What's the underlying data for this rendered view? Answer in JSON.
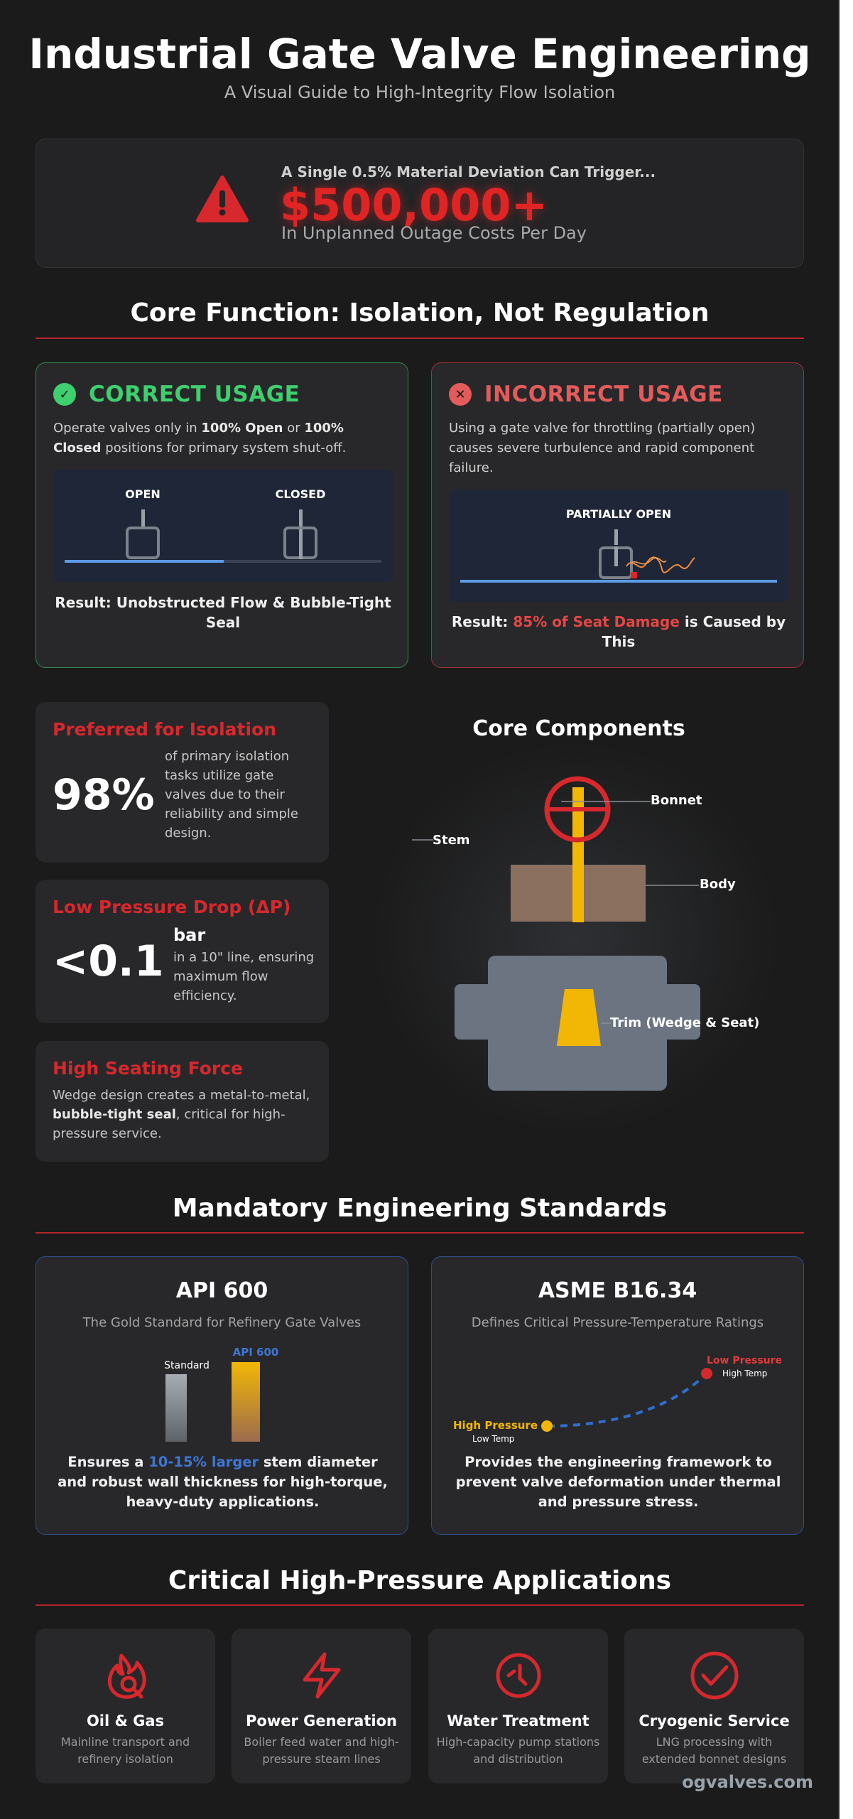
{
  "header": {
    "title": "Industrial Gate Valve Engineering",
    "subtitle": "A Visual Guide to High-Integrity Flow Isolation"
  },
  "alert": {
    "kicker": "A Single 0.5% Material Deviation Can Trigger...",
    "value": "$500,000+",
    "caption": "In Unplanned Outage Costs Per Day",
    "icon": "warning-triangle-icon",
    "color": "#e02424"
  },
  "core_function": {
    "title": "Core Function: Isolation, Not Regulation",
    "correct": {
      "title": "CORRECT USAGE",
      "icon": "check-circle-icon",
      "color": "#3ecf6e",
      "text_pre": "Operate valves only in ",
      "text_b1": "100% Open",
      "text_mid": " or ",
      "text_b2": "100% Closed",
      "text_post": " positions for primary system shut-off.",
      "diagram_open": "OPEN",
      "diagram_closed": "CLOSED",
      "result": "Result: Unobstructed Flow & Bubble-Tight Seal"
    },
    "incorrect": {
      "title": "INCORRECT USAGE",
      "icon": "x-circle-icon",
      "color": "#e35b5b",
      "text": "Using a gate valve for throttling (partially open) causes severe turbulence and rapid component failure.",
      "diagram_label": "PARTIALLY OPEN",
      "result_pre": "Result: ",
      "result_highlight": "85% of Seat Damage",
      "result_post": " is Caused by This"
    }
  },
  "stats": [
    {
      "title": "Preferred for Isolation",
      "value": "98%",
      "desc": "of primary isolation tasks utilize gate valves due to their reliability and simple design."
    },
    {
      "title": "Low Pressure Drop (ΔP)",
      "value": "<0.1",
      "unit": "bar",
      "desc": "in a 10\" line, ensuring maximum flow efficiency."
    },
    {
      "title": "High Seating Force",
      "desc_pre": "Wedge design creates a metal-to-metal, ",
      "desc_bold": "bubble-tight seal",
      "desc_post": ", critical for high-pressure service."
    }
  ],
  "components": {
    "title": "Core Components",
    "labels": {
      "bonnet": "Bonnet",
      "stem": "Stem",
      "body": "Body",
      "trim": "Trim (Wedge & Seat)"
    }
  },
  "standards": {
    "title": "Mandatory Engineering Standards",
    "api": {
      "title": "API 600",
      "subtitle": "The Gold Standard for Refinery Gate Valves",
      "bar_standard_label": "Standard",
      "bar_api_label": "API 600",
      "body_pre": "Ensures a ",
      "body_highlight": "10-15% larger",
      "body_post": " stem diameter and robust wall thickness for high-torque, heavy-duty applications."
    },
    "asme": {
      "title": "ASME B16.34",
      "subtitle": "Defines Critical Pressure-Temperature Ratings",
      "point_left_main": "High Pressure",
      "point_left_sub": "Low Temp",
      "point_right_main": "Low Pressure",
      "point_right_sub": "High Temp",
      "body": "Provides the engineering framework to prevent valve deformation under thermal and pressure stress."
    }
  },
  "applications": {
    "title": "Critical High-Pressure Applications",
    "items": [
      {
        "title": "Oil & Gas",
        "desc": "Mainline transport and refinery isolation",
        "icon": "flame-drop-icon"
      },
      {
        "title": "Power Generation",
        "desc": "Boiler feed water and high-pressure steam lines",
        "icon": "lightning-icon"
      },
      {
        "title": "Water Treatment",
        "desc": "High-capacity pump stations and distribution",
        "icon": "gauge-icon"
      },
      {
        "title": "Cryogenic Service",
        "desc": "LNG processing with extended bonnet designs",
        "icon": "check-circle-icon"
      }
    ]
  },
  "footer": {
    "brand": "ogvalves.com"
  },
  "colors": {
    "accent_red": "#d7282d",
    "success_green": "#3ecf6e",
    "standards_blue": "#3f76d4",
    "gold": "#f2b705"
  }
}
